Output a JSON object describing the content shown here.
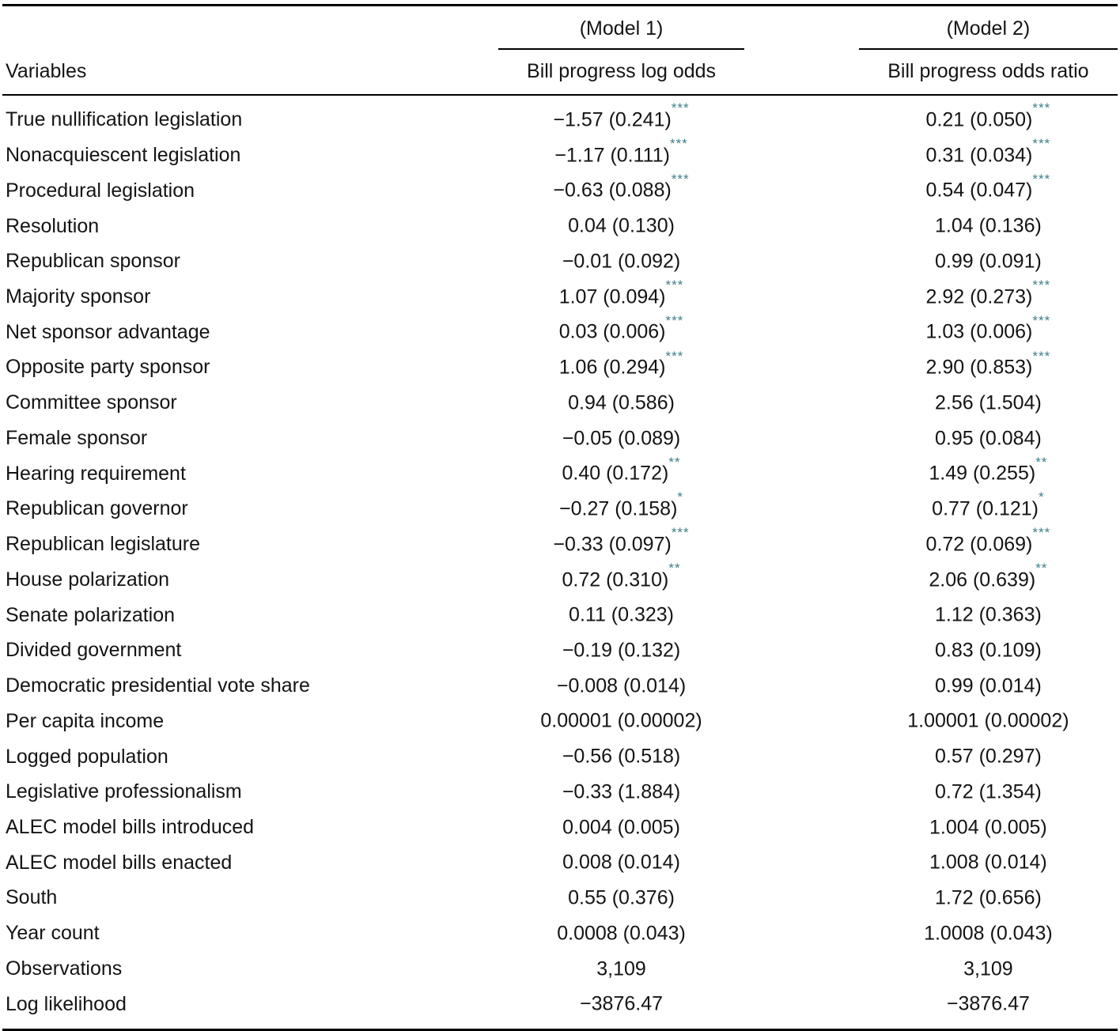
{
  "table": {
    "model_groups": [
      {
        "label": "(Model 1)"
      },
      {
        "label": "(Model 2)"
      }
    ],
    "headers": {
      "variables": "Variables",
      "model1": "Bill progress log odds",
      "model2": "Bill progress odds ratio"
    },
    "star_color": "#3e7f8a",
    "rows": [
      {
        "variable": "True nullification legislation",
        "m1": "−1.57 (0.241)",
        "m1_stars": "***",
        "m2": "0.21 (0.050)",
        "m2_stars": "***"
      },
      {
        "variable": "Nonacquiescent legislation",
        "m1": "−1.17 (0.111)",
        "m1_stars": "***",
        "m2": "0.31 (0.034)",
        "m2_stars": "***"
      },
      {
        "variable": "Procedural legislation",
        "m1": "−0.63 (0.088)",
        "m1_stars": "***",
        "m2": "0.54 (0.047)",
        "m2_stars": "***"
      },
      {
        "variable": "Resolution",
        "m1": "0.04 (0.130)",
        "m1_stars": "",
        "m2": "1.04 (0.136)",
        "m2_stars": ""
      },
      {
        "variable": "Republican sponsor",
        "m1": "−0.01 (0.092)",
        "m1_stars": "",
        "m2": "0.99 (0.091)",
        "m2_stars": ""
      },
      {
        "variable": "Majority sponsor",
        "m1": "1.07 (0.094)",
        "m1_stars": "***",
        "m2": "2.92 (0.273)",
        "m2_stars": "***"
      },
      {
        "variable": "Net sponsor advantage",
        "m1": "0.03 (0.006)",
        "m1_stars": "***",
        "m2": "1.03 (0.006)",
        "m2_stars": "***"
      },
      {
        "variable": "Opposite party sponsor",
        "m1": "1.06 (0.294)",
        "m1_stars": "***",
        "m2": "2.90 (0.853)",
        "m2_stars": "***"
      },
      {
        "variable": "Committee sponsor",
        "m1": "0.94 (0.586)",
        "m1_stars": "",
        "m2": "2.56 (1.504)",
        "m2_stars": ""
      },
      {
        "variable": "Female sponsor",
        "m1": "−0.05 (0.089)",
        "m1_stars": "",
        "m2": "0.95 (0.084)",
        "m2_stars": ""
      },
      {
        "variable": "Hearing requirement",
        "m1": "0.40 (0.172)",
        "m1_stars": "**",
        "m2": "1.49 (0.255)",
        "m2_stars": "**"
      },
      {
        "variable": "Republican governor",
        "m1": "−0.27 (0.158)",
        "m1_stars": "*",
        "m2": "0.77 (0.121)",
        "m2_stars": "*"
      },
      {
        "variable": "Republican legislature",
        "m1": "−0.33 (0.097)",
        "m1_stars": "***",
        "m2": "0.72 (0.069)",
        "m2_stars": "***"
      },
      {
        "variable": "House polarization",
        "m1": "0.72 (0.310)",
        "m1_stars": "**",
        "m2": "2.06 (0.639)",
        "m2_stars": "**"
      },
      {
        "variable": "Senate polarization",
        "m1": "0.11 (0.323)",
        "m1_stars": "",
        "m2": "1.12 (0.363)",
        "m2_stars": ""
      },
      {
        "variable": "Divided government",
        "m1": "−0.19 (0.132)",
        "m1_stars": "",
        "m2": "0.83 (0.109)",
        "m2_stars": ""
      },
      {
        "variable": "Democratic presidential vote share",
        "m1": "−0.008 (0.014)",
        "m1_stars": "",
        "m2": "0.99 (0.014)",
        "m2_stars": ""
      },
      {
        "variable": "Per capita income",
        "m1": "0.00001 (0.00002)",
        "m1_stars": "",
        "m2": "1.00001 (0.00002)",
        "m2_stars": ""
      },
      {
        "variable": "Logged population",
        "m1": "−0.56 (0.518)",
        "m1_stars": "",
        "m2": "0.57 (0.297)",
        "m2_stars": ""
      },
      {
        "variable": "Legislative professionalism",
        "m1": "−0.33 (1.884)",
        "m1_stars": "",
        "m2": "0.72 (1.354)",
        "m2_stars": ""
      },
      {
        "variable": "ALEC model bills introduced",
        "m1": "0.004 (0.005)",
        "m1_stars": "",
        "m2": "1.004 (0.005)",
        "m2_stars": ""
      },
      {
        "variable": "ALEC model bills enacted",
        "m1": "0.008 (0.014)",
        "m1_stars": "",
        "m2": "1.008 (0.014)",
        "m2_stars": ""
      },
      {
        "variable": "South",
        "m1": "0.55 (0.376)",
        "m1_stars": "",
        "m2": "1.72 (0.656)",
        "m2_stars": ""
      },
      {
        "variable": "Year count",
        "m1": "0.0008 (0.043)",
        "m1_stars": "",
        "m2": "1.0008 (0.043)",
        "m2_stars": ""
      },
      {
        "variable": "Observations",
        "m1": "3,109",
        "m1_stars": "",
        "m2": "3,109",
        "m2_stars": ""
      },
      {
        "variable": "Log likelihood",
        "m1": "−3876.47",
        "m1_stars": "",
        "m2": "−3876.47",
        "m2_stars": ""
      }
    ]
  }
}
